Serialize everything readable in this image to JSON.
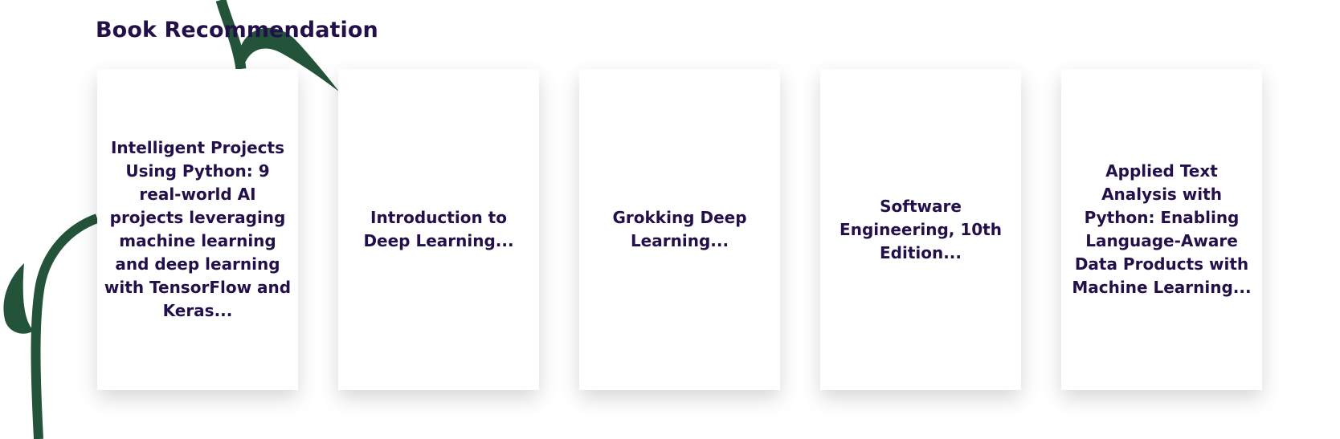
{
  "section": {
    "title": "Book Recommendation"
  },
  "books": [
    {
      "title": "Intelligent Projects Using Python: 9 real-world AI projects leveraging machine learning and deep learning with TensorFlow and Keras..."
    },
    {
      "title": "Introduction to Deep Learning..."
    },
    {
      "title": "Grokking Deep Learning..."
    },
    {
      "title": "Software Engineering, 10th Edition..."
    },
    {
      "title": "Applied Text Analysis with Python: Enabling Language-Aware Data Products with Machine Learning..."
    }
  ],
  "colors": {
    "heading": "#23104a",
    "vine": "#23543a",
    "card_background": "#ffffff"
  },
  "icons": {
    "decoration": "vine-decoration-icon"
  }
}
